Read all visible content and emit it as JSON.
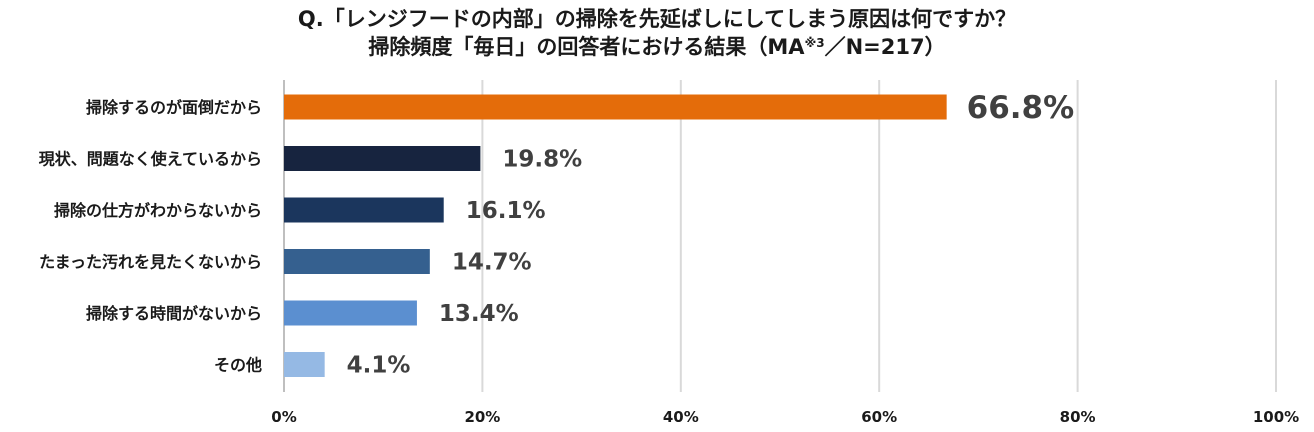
{
  "title": {
    "line1": "Q.「レンジフードの内部」の掃除を先延ばしにしてしまう原因は何ですか？",
    "line2_before": "掃除頻度「毎日」の回答者における結果（MA",
    "line2_sup": "※3",
    "line2_after": "／N=217）"
  },
  "chart_data": {
    "type": "bar",
    "orientation": "horizontal",
    "categories": [
      "掃除するのが面倒だから",
      "現状、問題なく使えているから",
      "掃除の仕方がわからないから",
      "たまった汚れを見たくないから",
      "掃除する時間がないから",
      "その他"
    ],
    "values": [
      66.8,
      19.8,
      16.1,
      14.7,
      13.4,
      4.1
    ],
    "value_labels": [
      "66.8%",
      "19.8%",
      "16.1%",
      "14.7%",
      "13.4%",
      "4.1%"
    ],
    "colors": [
      "#E46C0A",
      "#17243F",
      "#1B365D",
      "#35608F",
      "#5B8FD0",
      "#95B9E4"
    ],
    "xlim": [
      0,
      100
    ],
    "ticks": [
      0,
      20,
      40,
      60,
      80,
      100
    ],
    "tick_labels": [
      "0%",
      "20%",
      "40%",
      "60%",
      "80%",
      "100%"
    ],
    "grid": true
  }
}
